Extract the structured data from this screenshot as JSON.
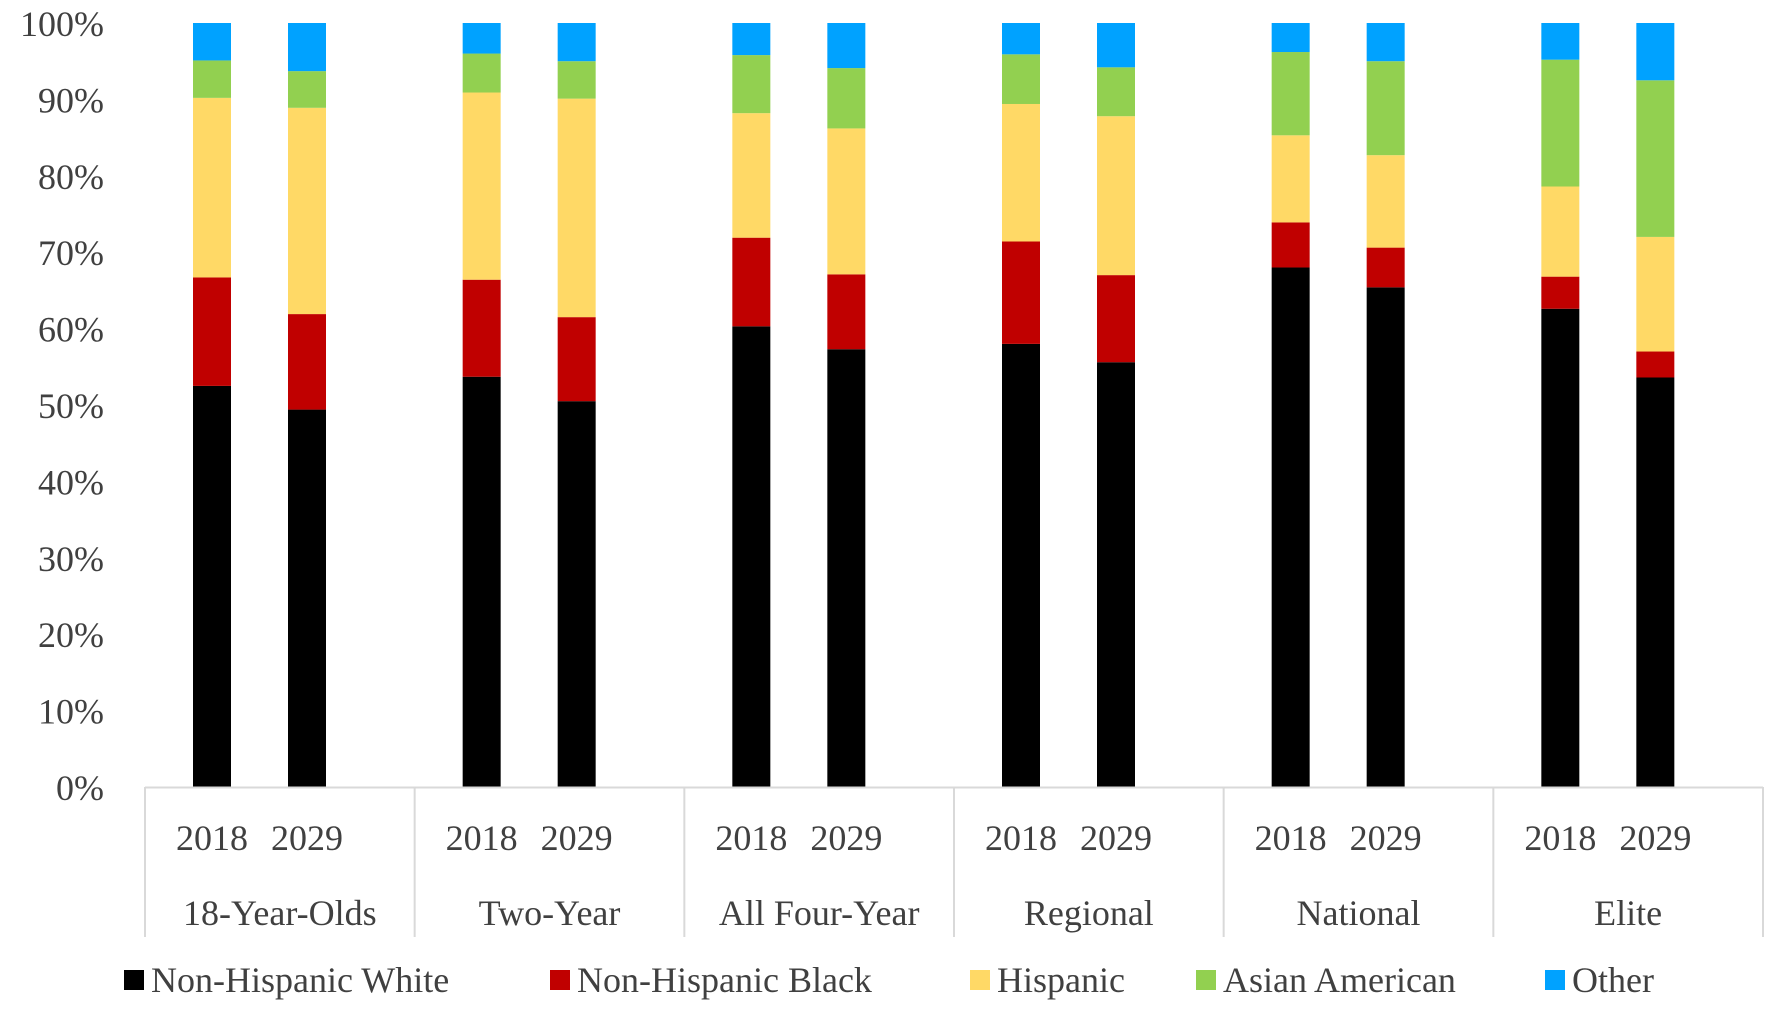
{
  "chart_data": {
    "type": "bar",
    "stacked": true,
    "title": "",
    "xlabel": "",
    "ylabel": "",
    "ylim": [
      0,
      100
    ],
    "y_ticks": [
      "0%",
      "10%",
      "20%",
      "30%",
      "40%",
      "50%",
      "60%",
      "70%",
      "80%",
      "90%",
      "100%"
    ],
    "grid": false,
    "legend_position": "bottom",
    "groups": [
      {
        "label": "18-Year-Olds",
        "years": [
          "2018",
          "2029"
        ]
      },
      {
        "label": "Two-Year",
        "years": [
          "2018",
          "2029"
        ]
      },
      {
        "label": "All Four-Year",
        "years": [
          "2018",
          "2029"
        ]
      },
      {
        "label": "Regional",
        "years": [
          "2018",
          "2029"
        ]
      },
      {
        "label": "National",
        "years": [
          "2018",
          "2029"
        ]
      },
      {
        "label": "Elite",
        "years": [
          "2018",
          "2029"
        ]
      }
    ],
    "categories": [
      "18-Year-Olds 2018",
      "18-Year-Olds 2029",
      "Two-Year 2018",
      "Two-Year 2029",
      "All Four-Year 2018",
      "All Four-Year 2029",
      "Regional 2018",
      "Regional 2029",
      "National 2018",
      "National 2029",
      "Elite 2018",
      "Elite 2029"
    ],
    "series": [
      {
        "name": "Non-Hispanic White",
        "color": "#000000",
        "values": [
          52.5,
          49.4,
          53.7,
          50.5,
          60.3,
          57.3,
          58.0,
          55.6,
          68.0,
          65.4,
          62.6,
          53.6
        ]
      },
      {
        "name": "Non-Hispanic Black",
        "color": "#C00000",
        "values": [
          14.2,
          12.5,
          12.7,
          11.0,
          11.6,
          9.8,
          13.4,
          11.4,
          5.9,
          5.2,
          4.2,
          3.4
        ]
      },
      {
        "name": "Hispanic",
        "color": "#FFD966",
        "values": [
          23.5,
          27.0,
          24.5,
          28.6,
          16.3,
          19.1,
          18.0,
          20.8,
          11.4,
          12.1,
          11.8,
          15.0
        ]
      },
      {
        "name": "Asian American",
        "color": "#92D050",
        "values": [
          4.9,
          4.8,
          5.1,
          4.9,
          7.6,
          7.9,
          6.5,
          6.4,
          10.9,
          12.3,
          16.6,
          20.5
        ]
      },
      {
        "name": "Other",
        "color": "#00A2FF",
        "values": [
          4.9,
          6.3,
          4.0,
          5.0,
          4.2,
          5.9,
          4.1,
          5.8,
          3.8,
          5.0,
          4.8,
          7.5
        ]
      }
    ]
  }
}
